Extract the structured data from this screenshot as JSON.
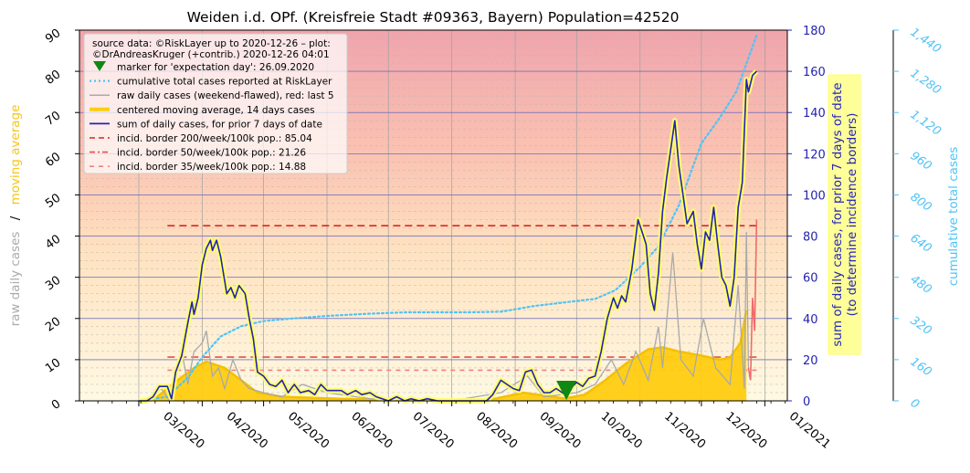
{
  "chart_data": {
    "type": "line",
    "title": "Weiden i.d. OPf. (Kreisfreie Stadt #09363, Bayern) Population=42520",
    "left_ylabel": {
      "part1": "raw daily cases",
      "sep": "/",
      "part2": "moving average"
    },
    "right_ylabel": [
      "sum of daily cases, for prior 7 days of date",
      "(to determine incidence borders)"
    ],
    "right2_ylabel": "cumulative total cases",
    "ylim_left": [
      0,
      90
    ],
    "ylim_right": [
      0,
      180
    ],
    "ylim_right2": [
      0,
      1440
    ],
    "left_ticks": [
      "0",
      "10",
      "20",
      "30",
      "40",
      "50",
      "60",
      "70",
      "80",
      "90"
    ],
    "right_ticks": [
      "0",
      "20",
      "40",
      "60",
      "80",
      "100",
      "120",
      "140",
      "160",
      "180"
    ],
    "right2_ticks": [
      "0",
      "160",
      "320",
      "480",
      "640",
      "800",
      "960",
      "1,120",
      "1,280",
      "1,440"
    ],
    "x_ticks": [
      "03/2020",
      "04/2020",
      "05/2020",
      "06/2020",
      "07/2020",
      "08/2020",
      "09/2020",
      "10/2020",
      "11/2020",
      "12/2020",
      "01/2021"
    ],
    "x_start": "2020-02-01",
    "x_end": "2021-01-12",
    "legend": {
      "source": [
        "source data: ©RiskLayer up to 2020-12-26 – plot:",
        "©DrAndreasKruger (+contrib.) 2020-12-26 04:01"
      ],
      "items": [
        "marker for 'expectation day': 26.09.2020",
        "cumulative total cases reported at RiskLayer",
        "raw daily cases (weekend-flawed), red: last 5",
        "centered moving average, 14 days cases",
        "sum of daily cases, for prior 7 days of date",
        "incid. border 200/week/100k pop.: 85.04",
        "incid. border 50/week/100k pop.: 21.26",
        "incid. border 35/week/100k pop.: 14.88"
      ],
      "placement": "top-left"
    },
    "expectation_day": "2020-09-26",
    "incidence_borders": [
      {
        "label": "200/week/100k",
        "value": 85.04,
        "color": "#d62728"
      },
      {
        "label": "50/week/100k",
        "value": 21.26,
        "color": "#e05050"
      },
      {
        "label": "35/week/100k",
        "value": 14.88,
        "color": "#f08080"
      }
    ],
    "series": [
      {
        "name": "sum of daily cases, for prior 7 days of date",
        "axis": "right",
        "points": [
          [
            "2020-03-01",
            0
          ],
          [
            "2020-03-05",
            0
          ],
          [
            "2020-03-08",
            2
          ],
          [
            "2020-03-11",
            7
          ],
          [
            "2020-03-15",
            7
          ],
          [
            "2020-03-17",
            1
          ],
          [
            "2020-03-19",
            14
          ],
          [
            "2020-03-22",
            22
          ],
          [
            "2020-03-25",
            38
          ],
          [
            "2020-03-27",
            48
          ],
          [
            "2020-03-28",
            42
          ],
          [
            "2020-03-30",
            50
          ],
          [
            "2020-04-01",
            66
          ],
          [
            "2020-04-03",
            74
          ],
          [
            "2020-04-05",
            78
          ],
          [
            "2020-04-06",
            73
          ],
          [
            "2020-04-08",
            78
          ],
          [
            "2020-04-10",
            70
          ],
          [
            "2020-04-13",
            52
          ],
          [
            "2020-04-15",
            55
          ],
          [
            "2020-04-17",
            50
          ],
          [
            "2020-04-19",
            56
          ],
          [
            "2020-04-22",
            52
          ],
          [
            "2020-04-24",
            40
          ],
          [
            "2020-04-26",
            30
          ],
          [
            "2020-04-28",
            14
          ],
          [
            "2020-05-01",
            12
          ],
          [
            "2020-05-04",
            8
          ],
          [
            "2020-05-07",
            7
          ],
          [
            "2020-05-10",
            10
          ],
          [
            "2020-05-13",
            4
          ],
          [
            "2020-05-16",
            8
          ],
          [
            "2020-05-19",
            4
          ],
          [
            "2020-05-23",
            5
          ],
          [
            "2020-05-26",
            3
          ],
          [
            "2020-05-29",
            8
          ],
          [
            "2020-06-01",
            5
          ],
          [
            "2020-06-05",
            5
          ],
          [
            "2020-06-08",
            5
          ],
          [
            "2020-06-11",
            3
          ],
          [
            "2020-06-15",
            5
          ],
          [
            "2020-06-18",
            3
          ],
          [
            "2020-06-22",
            4
          ],
          [
            "2020-06-25",
            2
          ],
          [
            "2020-06-28",
            1
          ],
          [
            "2020-07-01",
            0
          ],
          [
            "2020-07-05",
            2
          ],
          [
            "2020-07-09",
            0
          ],
          [
            "2020-07-12",
            1
          ],
          [
            "2020-07-16",
            0
          ],
          [
            "2020-07-20",
            1
          ],
          [
            "2020-07-25",
            0
          ],
          [
            "2020-08-01",
            0
          ],
          [
            "2020-08-10",
            0
          ],
          [
            "2020-08-18",
            0
          ],
          [
            "2020-08-21",
            3
          ],
          [
            "2020-08-25",
            10
          ],
          [
            "2020-08-28",
            8
          ],
          [
            "2020-08-31",
            6
          ],
          [
            "2020-09-03",
            5
          ],
          [
            "2020-09-06",
            14
          ],
          [
            "2020-09-09",
            15
          ],
          [
            "2020-09-12",
            8
          ],
          [
            "2020-09-15",
            4
          ],
          [
            "2020-09-18",
            4
          ],
          [
            "2020-09-21",
            6
          ],
          [
            "2020-09-24",
            4
          ],
          [
            "2020-09-26",
            3
          ],
          [
            "2020-09-28",
            6
          ],
          [
            "2020-10-01",
            9
          ],
          [
            "2020-10-04",
            7
          ],
          [
            "2020-10-07",
            11
          ],
          [
            "2020-10-10",
            12
          ],
          [
            "2020-10-13",
            24
          ],
          [
            "2020-10-16",
            40
          ],
          [
            "2020-10-19",
            50
          ],
          [
            "2020-10-21",
            45
          ],
          [
            "2020-10-23",
            51
          ],
          [
            "2020-10-25",
            48
          ],
          [
            "2020-10-28",
            64
          ],
          [
            "2020-10-31",
            88
          ],
          [
            "2020-11-02",
            82
          ],
          [
            "2020-11-04",
            76
          ],
          [
            "2020-11-06",
            52
          ],
          [
            "2020-11-08",
            44
          ],
          [
            "2020-11-10",
            62
          ],
          [
            "2020-11-12",
            92
          ],
          [
            "2020-11-14",
            108
          ],
          [
            "2020-11-16",
            122
          ],
          [
            "2020-11-18",
            136
          ],
          [
            "2020-11-20",
            114
          ],
          [
            "2020-11-22",
            100
          ],
          [
            "2020-11-24",
            86
          ],
          [
            "2020-11-27",
            92
          ],
          [
            "2020-11-29",
            76
          ],
          [
            "2020-12-01",
            64
          ],
          [
            "2020-12-03",
            82
          ],
          [
            "2020-12-05",
            78
          ],
          [
            "2020-12-07",
            94
          ],
          [
            "2020-12-09",
            76
          ],
          [
            "2020-12-11",
            60
          ],
          [
            "2020-12-13",
            56
          ],
          [
            "2020-12-15",
            46
          ],
          [
            "2020-12-17",
            60
          ],
          [
            "2020-12-19",
            94
          ],
          [
            "2020-12-21",
            106
          ],
          [
            "2020-12-23",
            156
          ],
          [
            "2020-12-24",
            150
          ],
          [
            "2020-12-26",
            158
          ],
          [
            "2020-12-28",
            160
          ]
        ]
      },
      {
        "name": "cumulative total cases reported at RiskLayer",
        "axis": "right2",
        "points": [
          [
            "2020-03-01",
            0
          ],
          [
            "2020-03-15",
            16
          ],
          [
            "2020-03-25",
            90
          ],
          [
            "2020-04-01",
            170
          ],
          [
            "2020-04-10",
            250
          ],
          [
            "2020-04-20",
            290
          ],
          [
            "2020-05-01",
            310
          ],
          [
            "2020-05-15",
            320
          ],
          [
            "2020-06-01",
            330
          ],
          [
            "2020-06-20",
            338
          ],
          [
            "2020-07-10",
            344
          ],
          [
            "2020-08-10",
            344
          ],
          [
            "2020-08-25",
            346
          ],
          [
            "2020-09-10",
            368
          ],
          [
            "2020-10-01",
            388
          ],
          [
            "2020-10-10",
            396
          ],
          [
            "2020-10-20",
            430
          ],
          [
            "2020-11-01",
            520
          ],
          [
            "2020-11-10",
            600
          ],
          [
            "2020-11-20",
            760
          ],
          [
            "2020-12-01",
            1000
          ],
          [
            "2020-12-10",
            1100
          ],
          [
            "2020-12-18",
            1200
          ],
          [
            "2020-12-23",
            1310
          ],
          [
            "2020-12-28",
            1420
          ]
        ]
      },
      {
        "name": "raw daily cases (weekend-flawed), red: last 5",
        "axis": "left",
        "points": [
          [
            "2020-03-08",
            1
          ],
          [
            "2020-03-12",
            3
          ],
          [
            "2020-03-16",
            0
          ],
          [
            "2020-03-19",
            5
          ],
          [
            "2020-03-22",
            12
          ],
          [
            "2020-03-25",
            4
          ],
          [
            "2020-03-28",
            12
          ],
          [
            "2020-04-01",
            14
          ],
          [
            "2020-04-03",
            17
          ],
          [
            "2020-04-06",
            6
          ],
          [
            "2020-04-09",
            8
          ],
          [
            "2020-04-12",
            3
          ],
          [
            "2020-04-16",
            10
          ],
          [
            "2020-04-20",
            5
          ],
          [
            "2020-04-24",
            3
          ],
          [
            "2020-05-01",
            2
          ],
          [
            "2020-05-10",
            1
          ],
          [
            "2020-05-20",
            4
          ],
          [
            "2020-06-01",
            2
          ],
          [
            "2020-06-15",
            1
          ],
          [
            "2020-07-01",
            0
          ],
          [
            "2020-08-01",
            0
          ],
          [
            "2020-08-25",
            2
          ],
          [
            "2020-09-07",
            6
          ],
          [
            "2020-09-15",
            1
          ],
          [
            "2020-10-01",
            2
          ],
          [
            "2020-10-10",
            4
          ],
          [
            "2020-10-18",
            10
          ],
          [
            "2020-10-24",
            4
          ],
          [
            "2020-10-30",
            12
          ],
          [
            "2020-11-05",
            5
          ],
          [
            "2020-11-10",
            18
          ],
          [
            "2020-11-12",
            8
          ],
          [
            "2020-11-17",
            36
          ],
          [
            "2020-11-21",
            10
          ],
          [
            "2020-11-27",
            6
          ],
          [
            "2020-12-02",
            20
          ],
          [
            "2020-12-08",
            8
          ],
          [
            "2020-12-15",
            4
          ],
          [
            "2020-12-19",
            28
          ],
          [
            "2020-12-22",
            3
          ],
          [
            "2020-12-23",
            41
          ],
          [
            "2020-12-24",
            8
          ]
        ]
      },
      {
        "name": "raw daily cases, last 5",
        "axis": "left",
        "color": "#f06a6a",
        "points": [
          [
            "2020-12-24",
            8
          ],
          [
            "2020-12-25",
            5
          ],
          [
            "2020-12-26",
            25
          ],
          [
            "2020-12-27",
            17
          ],
          [
            "2020-12-28",
            44
          ]
        ]
      },
      {
        "name": "centered moving average, 14 days cases",
        "axis": "left",
        "points": [
          [
            "2020-03-01",
            0
          ],
          [
            "2020-03-10",
            1
          ],
          [
            "2020-03-20",
            5
          ],
          [
            "2020-03-28",
            8
          ],
          [
            "2020-04-03",
            9.5
          ],
          [
            "2020-04-12",
            8
          ],
          [
            "2020-04-20",
            5
          ],
          [
            "2020-04-28",
            2
          ],
          [
            "2020-05-10",
            1
          ],
          [
            "2020-06-01",
            0.6
          ],
          [
            "2020-07-01",
            0.2
          ],
          [
            "2020-08-01",
            0
          ],
          [
            "2020-08-20",
            0.3
          ],
          [
            "2020-09-05",
            2
          ],
          [
            "2020-09-12",
            1.5
          ],
          [
            "2020-09-25",
            0.6
          ],
          [
            "2020-10-05",
            1.5
          ],
          [
            "2020-10-15",
            5
          ],
          [
            "2020-10-25",
            9
          ],
          [
            "2020-11-05",
            12.5
          ],
          [
            "2020-11-12",
            13
          ],
          [
            "2020-11-20",
            12
          ],
          [
            "2020-12-01",
            11
          ],
          [
            "2020-12-10",
            10
          ],
          [
            "2020-12-15",
            10.5
          ],
          [
            "2020-12-20",
            14
          ],
          [
            "2020-12-23",
            22
          ]
        ]
      }
    ]
  }
}
